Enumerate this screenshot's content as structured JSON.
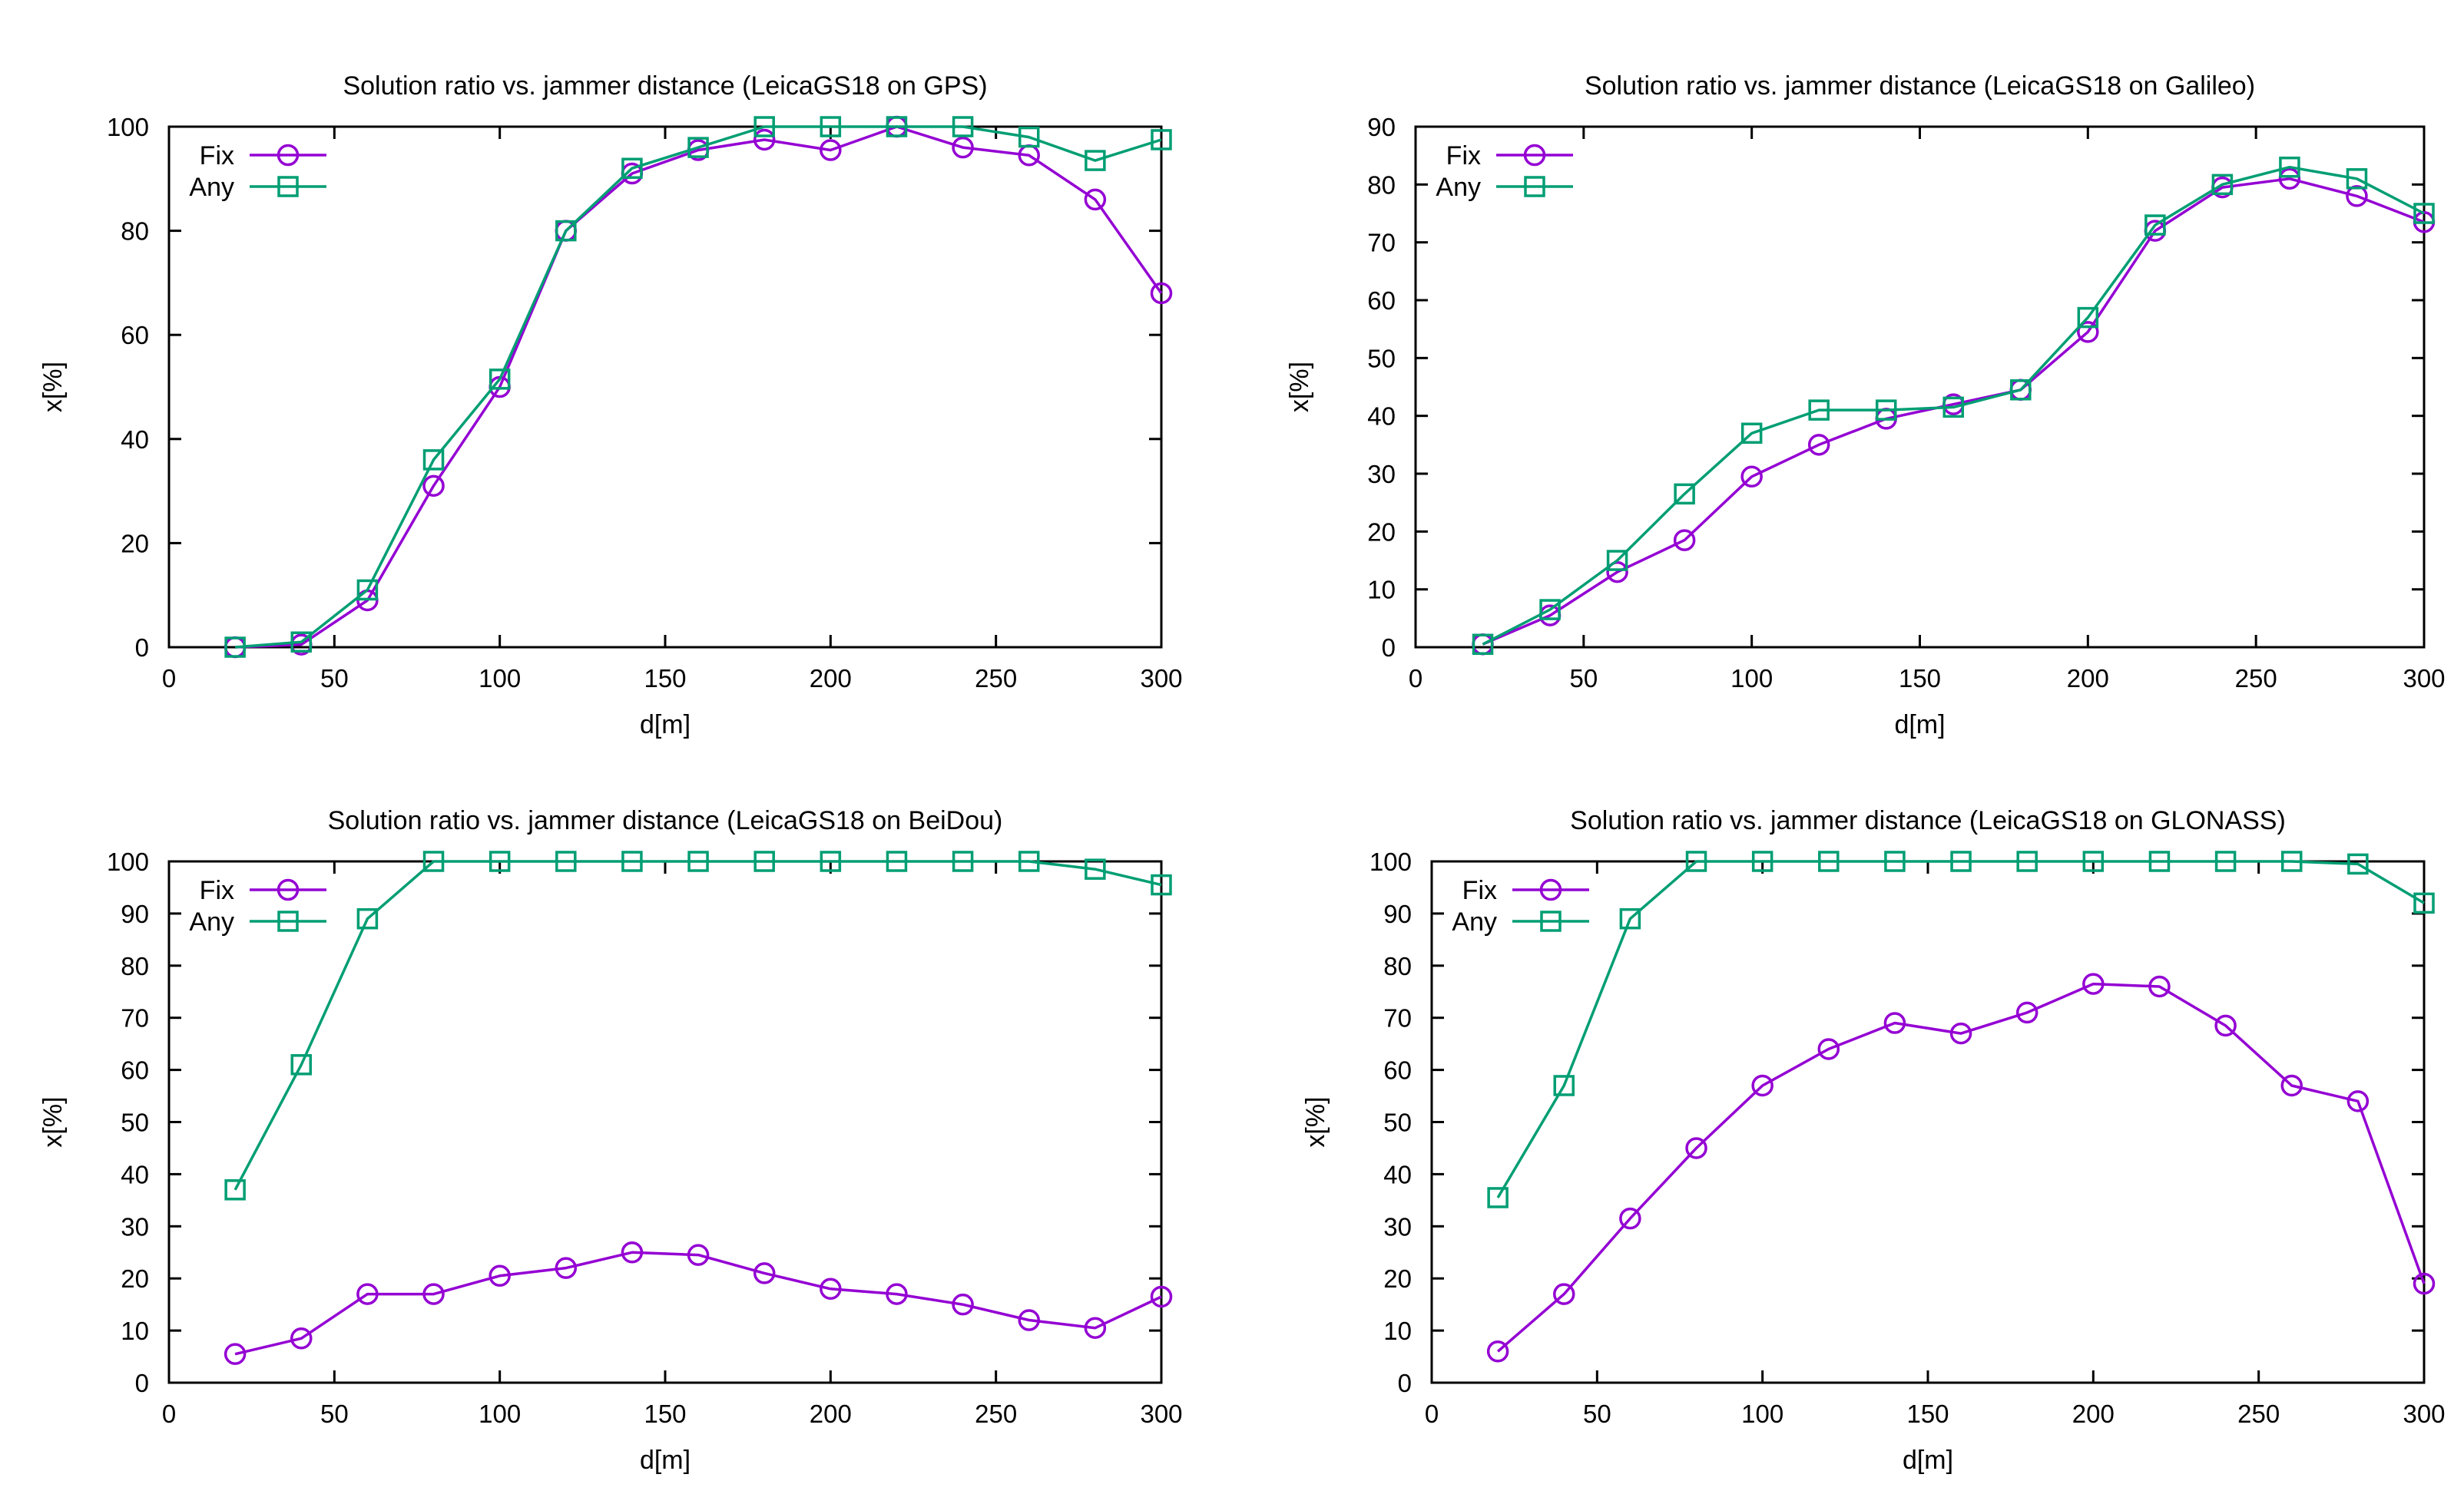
{
  "colors": {
    "fix": "#9400d3",
    "any": "#009e73"
  },
  "chart_data": [
    {
      "type": "line",
      "title": "Solution ratio vs. jammer distance (LeicaGS18 on GPS)",
      "xlabel": "d[m]",
      "ylabel": "x[%]",
      "xlim": [
        0,
        300
      ],
      "ylim": [
        0,
        100
      ],
      "xticks": [
        0,
        50,
        100,
        150,
        200,
        250,
        300
      ],
      "yticks": [
        0,
        20,
        40,
        60,
        80,
        100
      ],
      "x": [
        20,
        40,
        60,
        80,
        100,
        120,
        140,
        160,
        180,
        200,
        220,
        240,
        260,
        280,
        300
      ],
      "series": [
        {
          "name": "Fix",
          "marker": "circle",
          "values": [
            0,
            0.5,
            9,
            31,
            50,
            80,
            91,
            95.5,
            97.5,
            95.5,
            100,
            96,
            94.5,
            86,
            68
          ]
        },
        {
          "name": "Any",
          "marker": "square",
          "values": [
            0,
            1,
            11,
            36,
            51.5,
            80,
            92,
            96,
            100,
            100,
            100,
            100,
            98,
            93.5,
            97.5
          ]
        }
      ],
      "legend": "top-left"
    },
    {
      "type": "line",
      "title": "Solution ratio vs. jammer distance (LeicaGS18 on Galileo)",
      "xlabel": "d[m]",
      "ylabel": "x[%]",
      "xlim": [
        0,
        300
      ],
      "ylim": [
        0,
        90
      ],
      "xticks": [
        0,
        50,
        100,
        150,
        200,
        250,
        300
      ],
      "yticks": [
        0,
        10,
        20,
        30,
        40,
        50,
        60,
        70,
        80,
        90
      ],
      "x": [
        20,
        40,
        60,
        80,
        100,
        120,
        140,
        160,
        180,
        200,
        220,
        240,
        260,
        280,
        300
      ],
      "series": [
        {
          "name": "Fix",
          "marker": "circle",
          "values": [
            0.5,
            5.5,
            13,
            18.5,
            29.5,
            35,
            39.5,
            42,
            44.5,
            54.5,
            72,
            79.5,
            81,
            78,
            73.5
          ]
        },
        {
          "name": "Any",
          "marker": "square",
          "values": [
            0.5,
            6.5,
            15,
            26.5,
            37,
            41,
            41,
            41.5,
            44.5,
            57,
            73,
            80,
            83,
            81,
            75
          ]
        }
      ],
      "legend": "top-left"
    },
    {
      "type": "line",
      "title": "Solution ratio vs. jammer distance (LeicaGS18 on BeiDou)",
      "xlabel": "d[m]",
      "ylabel": "x[%]",
      "xlim": [
        0,
        300
      ],
      "ylim": [
        0,
        100
      ],
      "xticks": [
        0,
        50,
        100,
        150,
        200,
        250,
        300
      ],
      "yticks": [
        0,
        10,
        20,
        30,
        40,
        50,
        60,
        70,
        80,
        90,
        100
      ],
      "x": [
        20,
        40,
        60,
        80,
        100,
        120,
        140,
        160,
        180,
        200,
        220,
        240,
        260,
        280,
        300
      ],
      "series": [
        {
          "name": "Fix",
          "marker": "circle",
          "values": [
            5.5,
            8.5,
            17,
            17,
            20.5,
            22,
            25,
            24.5,
            21,
            18,
            17,
            15,
            12,
            10.5,
            16.5
          ]
        },
        {
          "name": "Any",
          "marker": "square",
          "values": [
            37,
            61,
            89,
            100,
            100,
            100,
            100,
            100,
            100,
            100,
            100,
            100,
            100,
            98.5,
            95.5
          ]
        }
      ],
      "legend": "top-left"
    },
    {
      "type": "line",
      "title": "Solution ratio vs. jammer distance (LeicaGS18 on GLONASS)",
      "xlabel": "d[m]",
      "ylabel": "x[%]",
      "xlim": [
        0,
        300
      ],
      "ylim": [
        0,
        100
      ],
      "xticks": [
        0,
        50,
        100,
        150,
        200,
        250,
        300
      ],
      "yticks": [
        0,
        10,
        20,
        30,
        40,
        50,
        60,
        70,
        80,
        90,
        100
      ],
      "x": [
        20,
        40,
        60,
        80,
        100,
        120,
        140,
        160,
        180,
        200,
        220,
        240,
        260,
        280,
        300
      ],
      "series": [
        {
          "name": "Fix",
          "marker": "circle",
          "values": [
            6,
            17,
            31.5,
            45,
            57,
            64,
            69,
            67,
            71,
            76.5,
            76,
            68.5,
            57,
            54,
            19
          ]
        },
        {
          "name": "Any",
          "marker": "square",
          "values": [
            35.5,
            57,
            89,
            100,
            100,
            100,
            100,
            100,
            100,
            100,
            100,
            100,
            100,
            99.5,
            92
          ]
        }
      ],
      "legend": "top-left"
    }
  ]
}
